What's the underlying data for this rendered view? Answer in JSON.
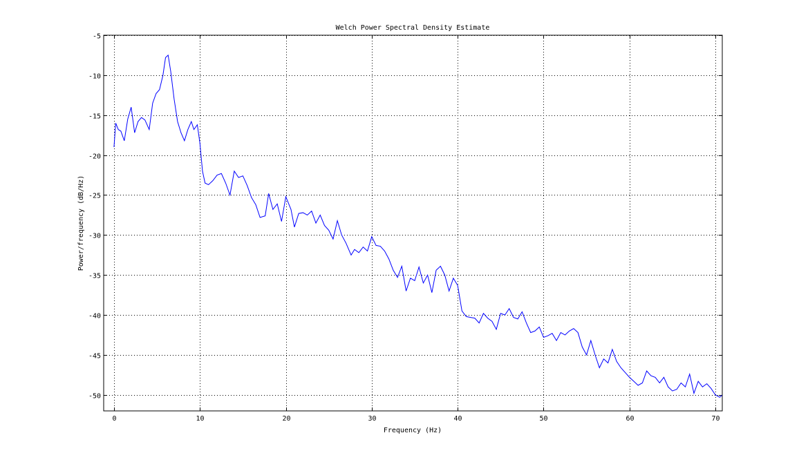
{
  "chart_data": {
    "type": "line",
    "title": "Welch Power Spectral Density Estimate",
    "xlabel": "Frequency (Hz)",
    "ylabel": "Power/frequency (dB/Hz)",
    "xlim": [
      -1.2,
      70.8
    ],
    "ylim": [
      -52,
      -5
    ],
    "xticks": [
      0,
      10,
      20,
      30,
      40,
      50,
      60,
      70
    ],
    "yticks": [
      -50,
      -45,
      -40,
      -35,
      -30,
      -25,
      -20,
      -15,
      -10,
      -5
    ],
    "xtick_labels": [
      "0",
      "10",
      "20",
      "30",
      "40",
      "50",
      "60",
      "70"
    ],
    "ytick_labels": [
      "-50",
      "-45",
      "-40",
      "-35",
      "-30",
      "-25",
      "-20",
      "-15",
      "-10",
      "-5"
    ],
    "grid": true,
    "line_color": "#0000ff",
    "series": [
      {
        "x": [
          0,
          0.2,
          0.5,
          0.8,
          1.2,
          1.6,
          2.0,
          2.4,
          2.8,
          3.2,
          3.6,
          4.1,
          4.5,
          4.9,
          5.3,
          5.7,
          6.0,
          6.3,
          6.6,
          7.0,
          7.4,
          7.8,
          8.2,
          8.6,
          9.0,
          9.3,
          9.7,
          10.0,
          10.3,
          10.6,
          11.0,
          11.5,
          12.0,
          12.5,
          13.0,
          13.5,
          14.0,
          14.5,
          15.0,
          15.5,
          16.0,
          16.5,
          17.0,
          17.6,
          18.0,
          18.5,
          19.0,
          19.5,
          20.0,
          20.6,
          21.0,
          21.5,
          22.0,
          22.5,
          23.0,
          23.5,
          24.0,
          24.5,
          25.0,
          25.5,
          26.0,
          26.5,
          27.0,
          27.6,
          28.0,
          28.5,
          29.0,
          29.5,
          30.0,
          30.5,
          31.0,
          31.5,
          32.0,
          32.5,
          33.0,
          33.5,
          34.0,
          34.5,
          35.0,
          35.5,
          36.0,
          36.5,
          37.0,
          37.5,
          38.0,
          38.5,
          39.0,
          39.5,
          40.0,
          40.5,
          41.0,
          41.5,
          42.0,
          42.5,
          43.0,
          43.5,
          44.0,
          44.5,
          45.0,
          45.5,
          46.0,
          46.5,
          47.0,
          47.5,
          48.0,
          48.5,
          49.0,
          49.5,
          50.0,
          50.5,
          51.0,
          51.5,
          52.0,
          52.5,
          53.0,
          53.5,
          54.0,
          54.5,
          55.0,
          55.5,
          56.0,
          56.5,
          57.0,
          57.5,
          58.0,
          58.5,
          59.0,
          59.5,
          60.0,
          60.5,
          61.0,
          61.5,
          62.0,
          62.5,
          63.0,
          63.5,
          64.0,
          64.5,
          65.0,
          65.5,
          66.0,
          66.5,
          67.0,
          67.5,
          68.0,
          68.5,
          69.0,
          69.5,
          70.0,
          70.5,
          70.8
        ],
        "y": [
          -19,
          -16,
          -16.8,
          -17,
          -18.2,
          -15.5,
          -14,
          -17.2,
          -15.8,
          -15.3,
          -15.6,
          -16.8,
          -13.5,
          -12.3,
          -11.8,
          -10,
          -7.8,
          -7.5,
          -9.5,
          -13,
          -15.8,
          -17.2,
          -18.2,
          -16.8,
          -15.8,
          -16.8,
          -16.2,
          -18.5,
          -22,
          -23.5,
          -23.7,
          -23.2,
          -22.5,
          -22.3,
          -23.5,
          -25,
          -22,
          -22.8,
          -22.6,
          -23.8,
          -25.3,
          -26.2,
          -27.8,
          -27.6,
          -24.8,
          -26.8,
          -26.1,
          -28.3,
          -25.2,
          -26.8,
          -29.0,
          -27.3,
          -27.2,
          -27.5,
          -27.0,
          -28.5,
          -27.5,
          -28.8,
          -29.4,
          -30.5,
          -28.2,
          -30.0,
          -31.0,
          -32.5,
          -31.8,
          -32.2,
          -31.5,
          -32.0,
          -30.2,
          -31.3,
          -31.4,
          -32.0,
          -33.0,
          -34.4,
          -35.3,
          -33.9,
          -37.0,
          -35.4,
          -35.7,
          -34.0,
          -36.0,
          -35.0,
          -37.2,
          -34.4,
          -33.9,
          -35.0,
          -37.0,
          -35.4,
          -36.3,
          -39.5,
          -40.2,
          -40.3,
          -40.4,
          -41.0,
          -39.8,
          -40.4,
          -40.8,
          -41.8,
          -39.8,
          -40.0,
          -39.2,
          -40.3,
          -40.5,
          -39.6,
          -41.0,
          -42.2,
          -42.0,
          -41.5,
          -42.8,
          -42.6,
          -42.3,
          -43.2,
          -42.2,
          -42.5,
          -42.0,
          -41.7,
          -42.2,
          -44.0,
          -45.0,
          -43.2,
          -45.0,
          -46.6,
          -45.5,
          -46.0,
          -44.3,
          -45.8,
          -46.6,
          -47.2,
          -47.8,
          -48.3,
          -48.8,
          -48.5,
          -47.0,
          -47.6,
          -47.8,
          -48.5,
          -47.8,
          -49.0,
          -49.5,
          -49.3,
          -48.5,
          -49.0,
          -47.4,
          -49.8,
          -48.3,
          -49.0,
          -48.6,
          -49.2,
          -50.0,
          -50.3,
          -50.0
        ]
      }
    ]
  }
}
